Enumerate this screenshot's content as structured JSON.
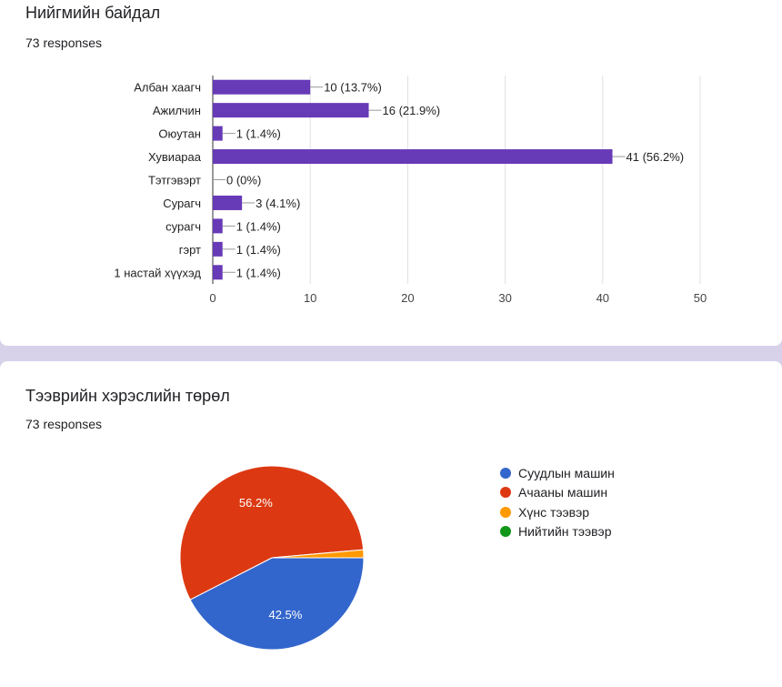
{
  "occupation": {
    "title": "Нийгмийн байдал",
    "responses": "73 responses",
    "chart_data": {
      "type": "bar",
      "orientation": "horizontal",
      "categories": [
        "Албан хаагч",
        "Ажилчин",
        "Оюутан",
        "Хувиараа",
        "Тэтгэвэрт",
        "Сурагч",
        "сурагч",
        "гэрт",
        "1 настай хүүхэд"
      ],
      "values": [
        10,
        16,
        1,
        41,
        0,
        3,
        1,
        1,
        1
      ],
      "data_labels": [
        "10 (13.7%)",
        "16 (21.9%)",
        "1 (1.4%)",
        "41 (56.2%)",
        "0 (0%)",
        "3 (4.1%)",
        "1 (1.4%)",
        "1 (1.4%)",
        "1 (1.4%)"
      ],
      "xlim": [
        0,
        50
      ],
      "xticks": [
        0,
        10,
        20,
        30,
        40,
        50
      ],
      "grid": true,
      "color": "#673ab7"
    }
  },
  "vehicle": {
    "title": "Тээврийн хэрэслийн төрөл",
    "responses": "73 responses",
    "chart_data": {
      "type": "pie",
      "labels": [
        "Суудлын машин",
        "Ачааны машин",
        "Хүнс тээвэр",
        "Нийтийн тээвэр"
      ],
      "values": [
        42.5,
        56.2,
        1.4,
        0
      ],
      "colors": [
        "#3366cc",
        "#dc3912",
        "#ff9900",
        "#109618"
      ],
      "slice_labels": [
        "42.5%",
        "56.2%",
        "",
        ""
      ],
      "legend": "right"
    }
  }
}
